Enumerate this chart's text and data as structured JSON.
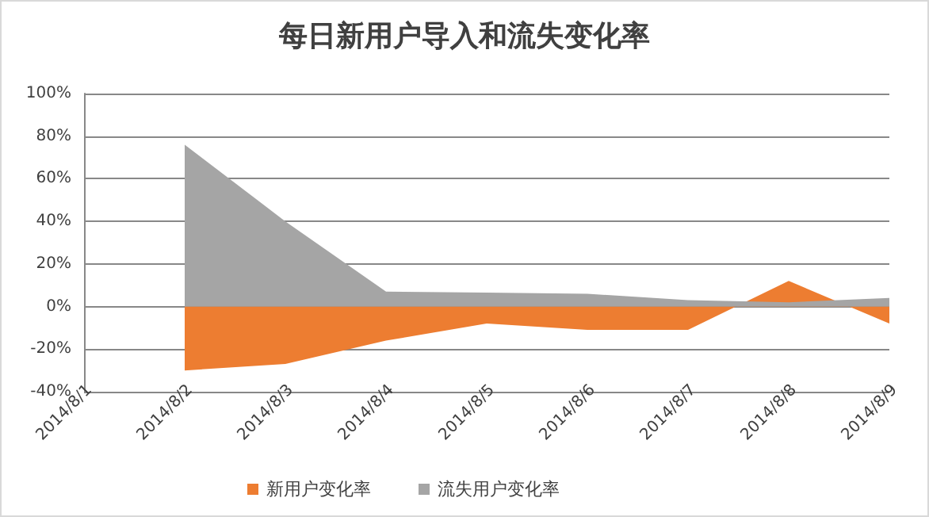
{
  "chart_data": {
    "type": "area",
    "title": "每日新用户导入和流失变化率",
    "categories": [
      "2014/8/1",
      "2014/8/2",
      "2014/8/3",
      "2014/8/4",
      "2014/8/5",
      "2014/8/6",
      "2014/8/7",
      "2014/8/8",
      "2014/8/9"
    ],
    "series": [
      {
        "name": "新用户变化率",
        "color": "#ed7d31",
        "values": [
          null,
          -30,
          -27,
          -16,
          -8,
          -11,
          -11,
          12,
          -8
        ]
      },
      {
        "name": "流失用户变化率",
        "color": "#a5a5a5",
        "values": [
          null,
          76,
          40,
          7,
          6.5,
          6,
          3,
          2,
          4
        ]
      }
    ],
    "ylim": [
      -40,
      100
    ],
    "yticks": [
      {
        "value": -40,
        "label": "-40%"
      },
      {
        "value": -20,
        "label": "-20%"
      },
      {
        "value": 0,
        "label": "0%"
      },
      {
        "value": 20,
        "label": "20%"
      },
      {
        "value": 40,
        "label": "40%"
      },
      {
        "value": 60,
        "label": "60%"
      },
      {
        "value": 80,
        "label": "80%"
      },
      {
        "value": 100,
        "label": "100%"
      }
    ],
    "grid": "y",
    "legend": "bottom"
  }
}
